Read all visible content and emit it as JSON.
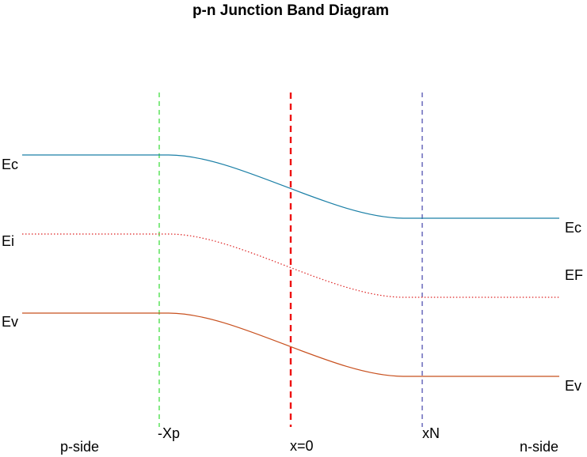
{
  "title": "p-n Junction Band Diagram",
  "left_labels": {
    "conduction": "Ec",
    "intrinsic": "Ei",
    "valence": "Ev"
  },
  "right_labels": {
    "conduction": "Ec",
    "fermi": "EF",
    "valence": "Ev"
  },
  "markers": {
    "depletion_p": "-Xp",
    "junction": "x=0",
    "depletion_n": "xN"
  },
  "regions": {
    "p": "p-side",
    "n": "n-side"
  },
  "colors": {
    "conduction_band": "#1a7fa6",
    "intrinsic_level": "#dd2222",
    "valence_band": "#c8501e",
    "p_edge_line": "#33dd33",
    "junction_line": "#ee1111",
    "n_edge_line": "#4444aa"
  }
}
